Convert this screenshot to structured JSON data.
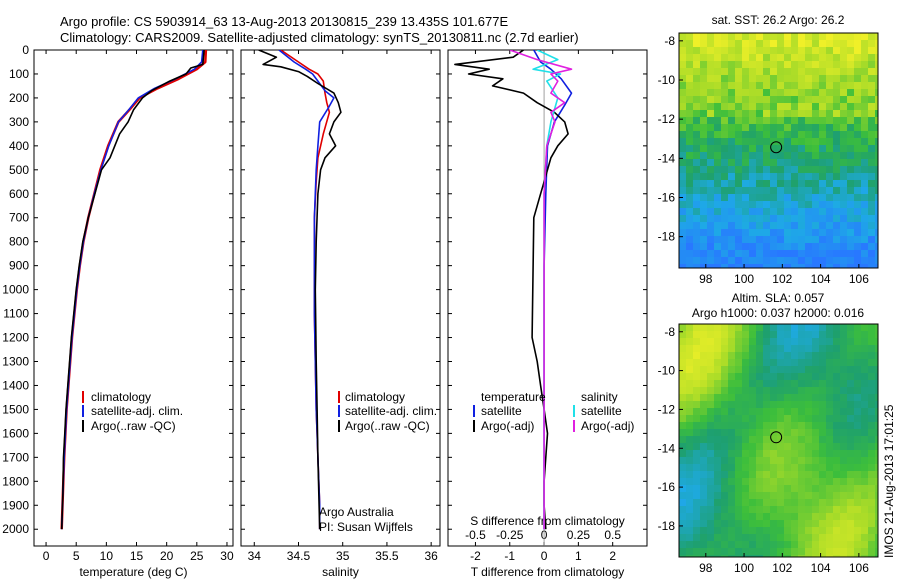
{
  "header": {
    "line1": "Argo profile: CS 5903914_63 13-Aug-2013 20130815_239 13.435S 101.677E",
    "line2": "Climatology: CARS2009. Satellite-adjusted climatology: synTS_20130811.nc (2.7d earlier)"
  },
  "side_label": "IMOS 21-Aug-2013 17:01:25",
  "legend_clim": [
    "climatology",
    "satellite-adj. clim.",
    "Argo(..raw -QC)"
  ],
  "legend_diff": {
    "temperature_head": "temperature",
    "salinity_head": "salinity",
    "satellite": "satellite",
    "argo": "Argo(-adj)"
  },
  "credit": [
    "Argo Australia",
    "PI: Susan Wijffels"
  ],
  "colors": {
    "climatology": "#e00000",
    "satellite": "#1020e0",
    "argo": "#000000",
    "sal_satellite": "#20e0e8",
    "sal_argo": "#e020e0"
  },
  "chart_data": [
    {
      "type": "line",
      "xlabel": "temperature (deg C)",
      "xticks": [
        0,
        5,
        10,
        15,
        20,
        25,
        30
      ],
      "xlim": [
        -2,
        31
      ],
      "ylim": [
        0,
        2070
      ],
      "yticks": [
        0,
        100,
        200,
        300,
        400,
        500,
        600,
        700,
        800,
        900,
        1000,
        1100,
        1200,
        1300,
        1400,
        1500,
        1600,
        1700,
        1800,
        1900,
        2000
      ],
      "series": [
        {
          "name": "climatology",
          "x": [
            26.5,
            26.4,
            25.0,
            22.0,
            18.5,
            15.5,
            13.8,
            12.0,
            10.3,
            9.0,
            8.0,
            7.0,
            6.2,
            5.6,
            5.1,
            4.7,
            4.3,
            4.0,
            3.7,
            3.4,
            3.2,
            3.0,
            2.8,
            2.6
          ],
          "y": [
            0,
            50,
            80,
            120,
            160,
            200,
            250,
            300,
            400,
            500,
            600,
            700,
            800,
            900,
            1000,
            1100,
            1200,
            1300,
            1400,
            1500,
            1600,
            1700,
            1850,
            2000
          ]
        },
        {
          "name": "satellite-adj. clim.",
          "x": [
            26.0,
            25.8,
            24.6,
            21.5,
            18.0,
            15.3,
            13.7,
            12.0,
            10.4,
            9.1,
            8.0,
            7.0,
            6.2,
            5.6,
            5.1,
            4.7,
            4.3,
            4.0,
            3.7,
            3.4,
            3.2,
            3.0,
            2.8,
            2.6
          ],
          "y": [
            0,
            50,
            80,
            120,
            160,
            200,
            250,
            300,
            400,
            500,
            600,
            700,
            800,
            900,
            1000,
            1100,
            1200,
            1300,
            1400,
            1500,
            1600,
            1700,
            1850,
            2000
          ]
        },
        {
          "name": "Argo(..raw -QC)",
          "x": [
            26.2,
            26.0,
            24.0,
            23.2,
            20.5,
            17.5,
            16.0,
            14.5,
            13.6,
            12.2,
            10.6,
            9.2,
            8.1,
            7.0,
            6.1,
            5.5,
            5.0,
            4.6,
            4.2,
            3.9,
            3.6,
            3.3,
            3.1,
            2.9,
            2.8,
            2.6
          ],
          "y": [
            0,
            60,
            75,
            100,
            130,
            170,
            200,
            250,
            300,
            350,
            450,
            500,
            600,
            700,
            800,
            900,
            1000,
            1100,
            1200,
            1300,
            1400,
            1500,
            1600,
            1700,
            1850,
            2000
          ]
        }
      ]
    },
    {
      "type": "line",
      "xlabel": "salinity",
      "xticks": [
        34,
        34.5,
        35,
        35.5,
        36
      ],
      "xlim": [
        33.85,
        36.1
      ],
      "ylim": [
        0,
        2070
      ],
      "series": [
        {
          "name": "climatology",
          "x": [
            34.3,
            34.5,
            34.62,
            34.72,
            34.78,
            34.8,
            34.82,
            34.85,
            34.78,
            34.72,
            34.7,
            34.68,
            34.68,
            34.68,
            34.69,
            34.7,
            34.71,
            34.72,
            34.73,
            34.74,
            34.74
          ],
          "y": [
            0,
            50,
            80,
            100,
            130,
            180,
            220,
            260,
            350,
            450,
            550,
            700,
            900,
            1100,
            1300,
            1500,
            1600,
            1700,
            1800,
            1900,
            2000
          ]
        },
        {
          "name": "satellite-adj. clim.",
          "x": [
            34.28,
            34.45,
            34.58,
            34.66,
            34.72,
            34.8,
            34.9,
            34.84,
            34.74,
            34.72,
            34.7,
            34.68,
            34.68,
            34.68,
            34.69,
            34.7,
            34.71,
            34.72,
            34.73,
            34.74,
            34.74
          ],
          "y": [
            0,
            50,
            80,
            100,
            130,
            170,
            200,
            240,
            300,
            400,
            500,
            700,
            900,
            1100,
            1300,
            1500,
            1600,
            1700,
            1800,
            1900,
            2000
          ]
        },
        {
          "name": "Argo(..raw -QC)",
          "x": [
            34.05,
            34.25,
            34.1,
            34.3,
            34.5,
            34.6,
            34.72,
            34.9,
            34.95,
            34.98,
            34.9,
            34.85,
            34.92,
            34.8,
            34.75,
            34.72,
            34.7,
            34.69,
            34.7,
            34.71,
            34.72,
            34.73,
            34.74
          ],
          "y": [
            0,
            30,
            60,
            70,
            90,
            110,
            140,
            180,
            220,
            260,
            300,
            350,
            400,
            450,
            500,
            600,
            800,
            1000,
            1300,
            1500,
            1700,
            1850,
            2000
          ]
        }
      ]
    },
    {
      "type": "line",
      "xlabel": "T difference from climatology",
      "xticks": [
        -2,
        -1,
        0,
        1,
        2
      ],
      "xlim": [
        -2.8,
        3
      ],
      "x2label": "S difference from climatology",
      "x2ticks": [
        -0.5,
        -0.25,
        0,
        0.25,
        0.5
      ],
      "x2lim": [
        -0.7,
        0.75
      ],
      "ylim": [
        0,
        2070
      ],
      "series": [
        {
          "name": "satellite (temperature)",
          "x": [
            -0.3,
            -0.1,
            0.2,
            0.5,
            0.8,
            0.6,
            0.3,
            0.1,
            0.05,
            0,
            0,
            0,
            0
          ],
          "y": [
            0,
            50,
            80,
            120,
            180,
            230,
            300,
            400,
            600,
            900,
            1300,
            1700,
            2000
          ]
        },
        {
          "name": "Argo(-adj) (temperature)",
          "x": [
            -0.6,
            -0.9,
            -2.6,
            -1.6,
            -2.2,
            -1.2,
            -1.5,
            -0.6,
            -0.2,
            0.3,
            0.6,
            0.7,
            0.4,
            0.2,
            0.1,
            0,
            -0.1,
            -0.3,
            -0.35,
            -0.2,
            -0.1,
            0,
            0.1,
            0.05,
            0,
            0,
            0,
            0.05
          ],
          "y": [
            0,
            30,
            60,
            80,
            100,
            120,
            150,
            180,
            220,
            260,
            300,
            350,
            400,
            450,
            500,
            550,
            600,
            700,
            1200,
            1300,
            1400,
            1500,
            1600,
            1700,
            1800,
            1850,
            1900,
            2000
          ]
        },
        {
          "name": "satellite (salinity)",
          "x": [
            -0.05,
            0.1,
            -0.08,
            0.12,
            0.02,
            0.1,
            0.05,
            0.02,
            0,
            0,
            0,
            0
          ],
          "y": [
            0,
            40,
            80,
            100,
            130,
            200,
            300,
            400,
            600,
            1000,
            1500,
            2000
          ]
        },
        {
          "name": "Argo(-adj) (salinity)",
          "x": [
            -0.25,
            -0.05,
            0.2,
            0.05,
            0.1,
            0.05,
            0.15,
            0.05,
            0.08,
            0.02,
            0,
            0,
            0
          ],
          "y": [
            0,
            40,
            80,
            100,
            130,
            180,
            220,
            260,
            300,
            400,
            600,
            1000,
            2000
          ]
        }
      ]
    },
    {
      "type": "heatmap",
      "title": "sat. SST: 26.2  Argo: 26.2",
      "xticks": [
        98,
        100,
        102,
        104,
        106
      ],
      "yticks": [
        -8,
        -10,
        -12,
        -14,
        -16,
        -18
      ],
      "xlim": [
        96.6,
        107.0
      ],
      "ylim": [
        -19.6,
        -7.6
      ],
      "float_position": {
        "lon": 101.677,
        "lat": -13.435
      }
    },
    {
      "type": "heatmap",
      "title_lines": [
        "Altim. SLA: 0.057",
        "Argo h1000: 0.037  h2000: 0.016"
      ],
      "xticks": [
        98,
        100,
        102,
        104,
        106
      ],
      "yticks": [
        -8,
        -10,
        -12,
        -14,
        -16,
        -18
      ],
      "xlim": [
        96.6,
        107.0
      ],
      "ylim": [
        -19.6,
        -7.6
      ],
      "float_position": {
        "lon": 101.677,
        "lat": -13.435
      }
    }
  ]
}
